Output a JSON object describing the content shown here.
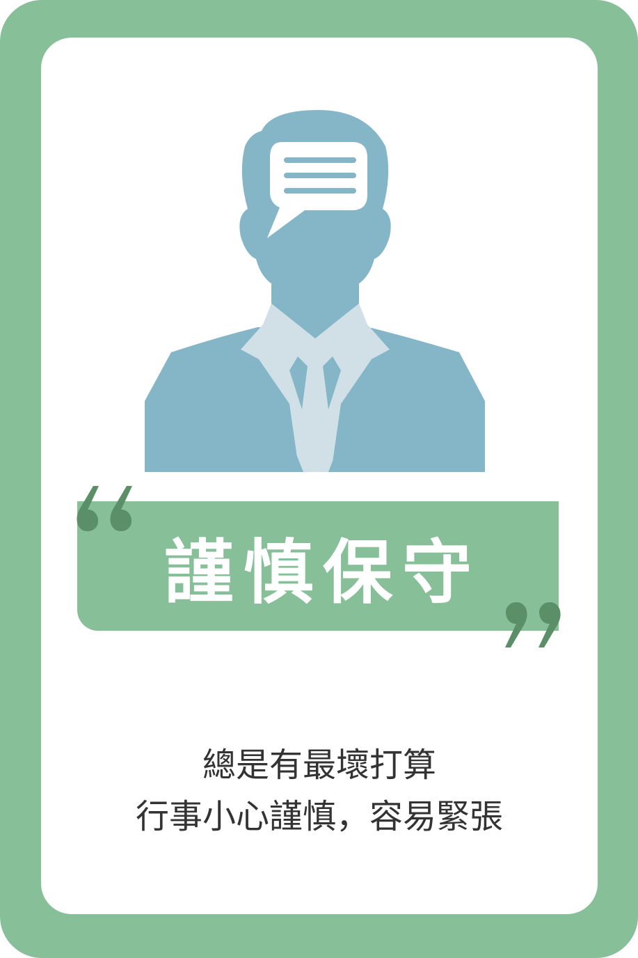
{
  "card": {
    "frame_color": "#86bf98",
    "title": "謹慎保守",
    "description_lines": [
      "總是有最壞打算",
      "行事小心謹慎，容易緊張"
    ]
  },
  "figure": {
    "icon": "businessman-with-speech-bubble-icon",
    "suit_color": "#84b6c8",
    "shirt_color": "#d1e0e6",
    "bubble_color": "#ffffff",
    "bubble_lines_color": "#84b6c8"
  },
  "quote_marks": {
    "color": "#5a8f68"
  }
}
